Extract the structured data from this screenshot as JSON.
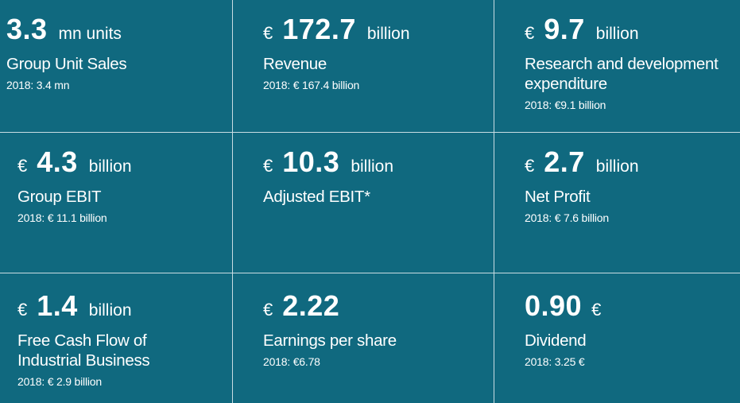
{
  "tiles": [
    {
      "currency_before": "",
      "value": "3.3",
      "unit": "mn units",
      "currency_after": "",
      "label_lines": [
        "Group Unit Sales"
      ],
      "comparison": "2018: 3.4 mn"
    },
    {
      "currency_before": "€",
      "value": "172.7",
      "unit": "billion",
      "currency_after": "",
      "label_lines": [
        "Revenue"
      ],
      "comparison": "2018: € 167.4 billion"
    },
    {
      "currency_before": "€",
      "value": "9.7",
      "unit": "billion",
      "currency_after": "",
      "label_lines": [
        "Research and development",
        "expenditure"
      ],
      "comparison": "2018: €9.1 billion"
    },
    {
      "currency_before": "€",
      "value": "4.3",
      "unit": "billion",
      "currency_after": "",
      "label_lines": [
        "Group EBIT"
      ],
      "comparison": "2018: € 11.1 billion"
    },
    {
      "currency_before": "€",
      "value": "10.3",
      "unit": "billion",
      "currency_after": "",
      "label_lines": [
        "Adjusted EBIT*"
      ],
      "comparison": ""
    },
    {
      "currency_before": "€",
      "value": "2.7",
      "unit": "billion",
      "currency_after": "",
      "label_lines": [
        "Net Profit"
      ],
      "comparison": "2018: € 7.6 billion"
    },
    {
      "currency_before": "€",
      "value": "1.4",
      "unit": "billion",
      "currency_after": "",
      "label_lines": [
        "Free Cash Flow of",
        "Industrial Business"
      ],
      "comparison": "2018: € 2.9 billion"
    },
    {
      "currency_before": "€",
      "value": "2.22",
      "unit": "",
      "currency_after": "",
      "label_lines": [
        "Earnings per share"
      ],
      "comparison": "2018: €6.78"
    },
    {
      "currency_before": "",
      "value": "0.90",
      "unit": "",
      "currency_after": "€",
      "label_lines": [
        "Dividend"
      ],
      "comparison": "2018: 3.25 €"
    }
  ],
  "colors": {
    "tile_background": "#10697f",
    "divider": "#c9dde3",
    "text": "#ffffff"
  }
}
